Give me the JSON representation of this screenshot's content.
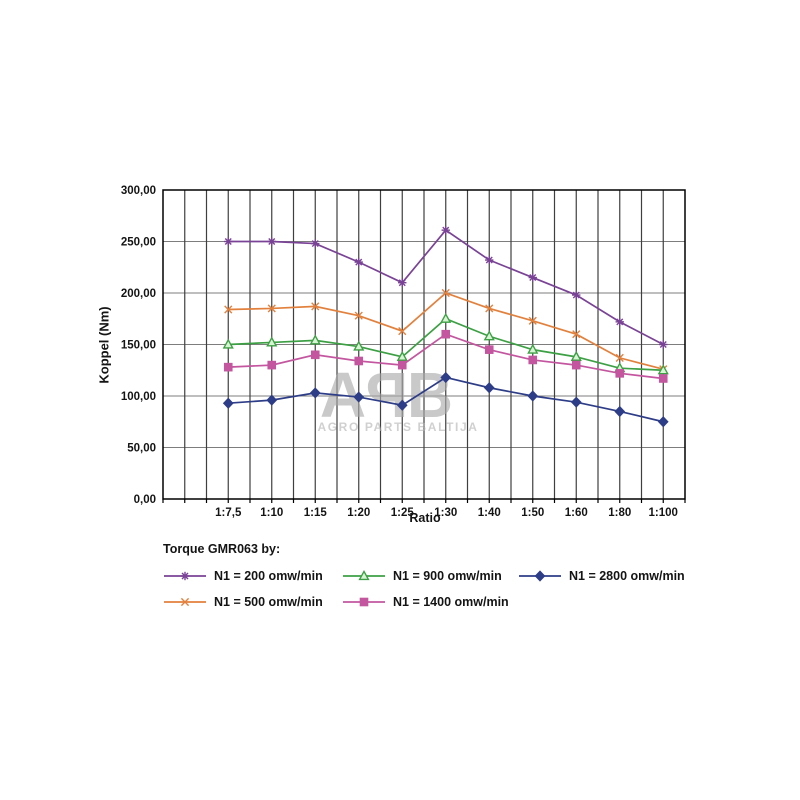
{
  "watermark": {
    "logo": "APB",
    "subtitle": "AGRO PARTS BALTIJA",
    "color": "#a9a9a9",
    "subtitle_color": "#b4b4b4"
  },
  "chart_data": {
    "type": "line",
    "title": "",
    "xlabel": "Ratio",
    "ylabel": "Koppel (Nm)",
    "ylim": [
      0,
      300
    ],
    "grid": true,
    "legend_position": "bottom",
    "legend_title": "Torque GMR063 by:",
    "categories": [
      "1:7,5",
      "1:10",
      "1:15",
      "1:20",
      "1:25",
      "1:30",
      "1:40",
      "1:50",
      "1:60",
      "1:80",
      "1:100"
    ],
    "y_ticks": [
      {
        "value": 0,
        "label": "0,00"
      },
      {
        "value": 50,
        "label": "50,00"
      },
      {
        "value": 100,
        "label": "100,00"
      },
      {
        "value": 150,
        "label": "150,00"
      },
      {
        "value": 200,
        "label": "200,00"
      },
      {
        "value": 250,
        "label": "250,00"
      },
      {
        "value": 300,
        "label": "300,00"
      }
    ],
    "series": [
      {
        "name": "N1 = 200 omw/min",
        "marker": "asterisk",
        "color": "#7a4396",
        "values": [
          250,
          250,
          248,
          230,
          210,
          261,
          232,
          215,
          198,
          172,
          150
        ]
      },
      {
        "name": "N1 = 500 omw/min",
        "marker": "x",
        "color": "#e2813d",
        "values": [
          184,
          185,
          187,
          178,
          163,
          200,
          185,
          173,
          160,
          137,
          126
        ]
      },
      {
        "name": "N1 = 900 omw/min",
        "marker": "triangle",
        "color": "#3da044",
        "marker_fill": "#d9f4d5",
        "values": [
          150,
          152,
          154,
          148,
          138,
          175,
          158,
          145,
          138,
          127,
          125
        ]
      },
      {
        "name": "N1 = 1400 omw/min",
        "marker": "square",
        "color": "#c3569f",
        "values": [
          128,
          130,
          140,
          134,
          130,
          160,
          145,
          135,
          130,
          122,
          117
        ]
      },
      {
        "name": "N1 = 2800 omw/min",
        "marker": "diamond",
        "color": "#2e3d87",
        "values": [
          93,
          96,
          103,
          99,
          91,
          118,
          108,
          100,
          94,
          85,
          75
        ]
      }
    ],
    "colors": {
      "h_grid": "#7d7d7d",
      "v_grid": "#3f3f3f",
      "border": "#000000",
      "tick_text": "#141414"
    }
  }
}
